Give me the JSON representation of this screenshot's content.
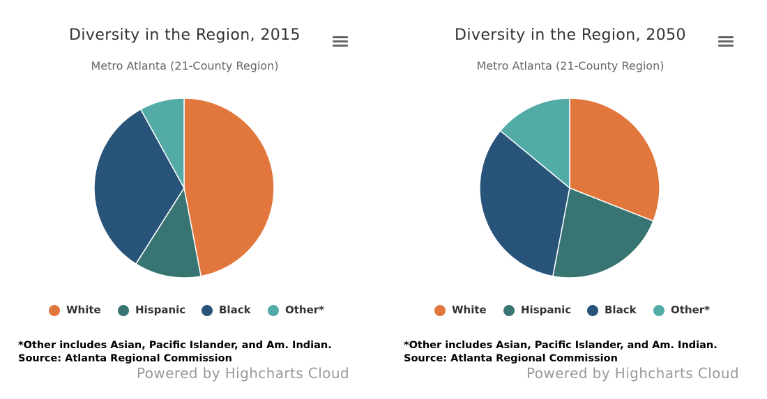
{
  "colors": {
    "White": "#e2773d",
    "Hispanic": "#387572",
    "Black": "#285479",
    "Other*": "#52aba6"
  },
  "menu": {
    "icon": "hamburger-menu-icon"
  },
  "chart_data": [
    {
      "type": "pie",
      "title": "Diversity in the Region, 2015",
      "subtitle": "Metro Atlanta (21-County Region)",
      "legend_position": "bottom-center",
      "categories": [
        "White",
        "Hispanic",
        "Black",
        "Other*"
      ],
      "values": [
        47,
        12,
        33,
        8
      ],
      "caption": "*Other includes Asian, Pacific Islander, and Am. Indian. Source: Atlanta Regional Commission",
      "credits": "Powered by Highcharts Cloud"
    },
    {
      "type": "pie",
      "title": "Diversity in the Region, 2050",
      "subtitle": "Metro Atlanta (21-County Region)",
      "legend_position": "bottom-center",
      "categories": [
        "White",
        "Hispanic",
        "Black",
        "Other*"
      ],
      "values": [
        31,
        22,
        33,
        14
      ],
      "caption": "*Other includes Asian, Pacific Islander, and Am. Indian. Source: Atlanta Regional Commission",
      "credits": "Powered by Highcharts Cloud"
    }
  ]
}
